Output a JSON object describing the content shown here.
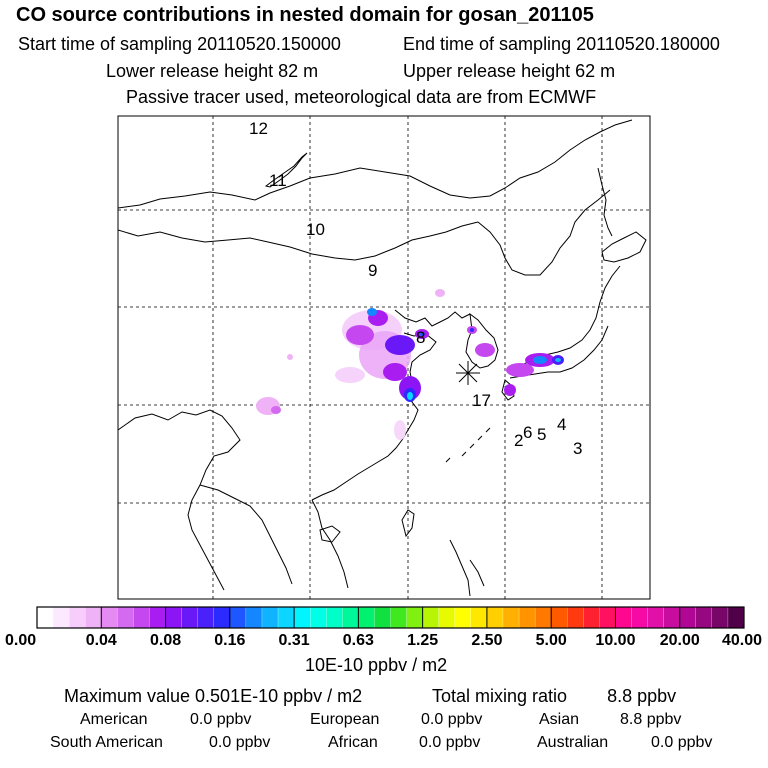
{
  "header": {
    "title": "CO  source contributions in nested domain for gosan_201105",
    "start_time": "Start time of sampling 20110520.150000",
    "end_time": "End time of sampling 20110520.180000",
    "lower_release": "Lower release height   82 m",
    "upper_release": "Upper release height   62 m",
    "tracer_note": "Passive tracer used, meteorological data are from ECMWF"
  },
  "map": {
    "trajectory_labels": [
      "12",
      "11",
      "10",
      "9",
      "8",
      "17",
      "6",
      "5",
      "4",
      "3",
      "2"
    ],
    "receptor_marker": "asterisk"
  },
  "colorbar": {
    "tick_labels": [
      "0.00",
      "0.04",
      "0.08",
      "0.16",
      "0.31",
      "0.63",
      "1.25",
      "2.50",
      "5.00",
      "10.00",
      "20.00",
      "40.00"
    ],
    "colors": [
      "#ffffff",
      "#fce8ff",
      "#f7cdfb",
      "#f0b2f6",
      "#e58af2",
      "#d46af0",
      "#c447ef",
      "#a91df1",
      "#8c14f5",
      "#6b18f8",
      "#4a20fb",
      "#2b2bff",
      "#1e57ff",
      "#1486ff",
      "#0fb3ff",
      "#0ad6ff",
      "#00f5ff",
      "#00ffe6",
      "#00ffc8",
      "#00f79a",
      "#00f070",
      "#10e040",
      "#40e820",
      "#80f010",
      "#b8f505",
      "#e8fa00",
      "#ffff00",
      "#ffe800",
      "#ffcf00",
      "#ffb000",
      "#ff9400",
      "#ff7800",
      "#ff5a00",
      "#ff3a10",
      "#ff2030",
      "#ff1060",
      "#ff0890",
      "#f50aa5",
      "#e010a8",
      "#c80c9f",
      "#b00894",
      "#96087f",
      "#780668",
      "#500048"
    ],
    "units": "10E-10 ppbv / m2"
  },
  "summary": {
    "max_value": "Maximum value  0.501E-10 ppbv / m2",
    "total_mixing": "Total mixing ratio",
    "total_mixing_value": "8.8 ppbv",
    "regions": [
      {
        "name": "American",
        "value": "0.0 ppbv"
      },
      {
        "name": "European",
        "value": "0.0 ppbv"
      },
      {
        "name": "Asian",
        "value": "8.8 ppbv"
      },
      {
        "name": "South American",
        "value": "0.0 ppbv"
      },
      {
        "name": "African",
        "value": "0.0 ppbv"
      },
      {
        "name": "Australian",
        "value": "0.0 ppbv"
      }
    ]
  }
}
